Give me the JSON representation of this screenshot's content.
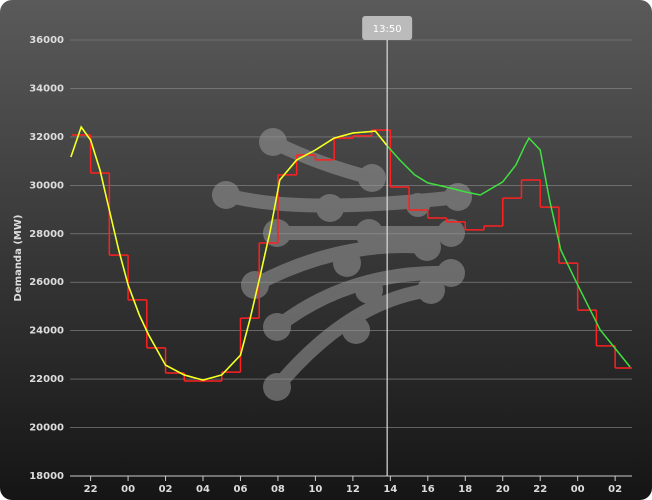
{
  "chart_data": {
    "type": "line",
    "y_label": "Demanda (MW)",
    "xlim": [
      20.9,
      50.9
    ],
    "ylim": [
      18000,
      36000
    ],
    "yticks": [
      18000,
      20000,
      22000,
      24000,
      26000,
      28000,
      30000,
      32000,
      34000,
      36000
    ],
    "xticks": [
      {
        "value": 22,
        "label": "22"
      },
      {
        "value": 24,
        "label": "00"
      },
      {
        "value": 26,
        "label": "02"
      },
      {
        "value": 28,
        "label": "04"
      },
      {
        "value": 30,
        "label": "06"
      },
      {
        "value": 32,
        "label": "08"
      },
      {
        "value": 34,
        "label": "10"
      },
      {
        "value": 36,
        "label": "12"
      },
      {
        "value": 38,
        "label": "14"
      },
      {
        "value": 40,
        "label": "16"
      },
      {
        "value": 42,
        "label": "18"
      },
      {
        "value": 44,
        "label": "20"
      },
      {
        "value": 46,
        "label": "22"
      },
      {
        "value": 48,
        "label": "00"
      },
      {
        "value": 50,
        "label": "02"
      }
    ],
    "grid": true,
    "cursor": {
      "label": "13:50",
      "x": 37.83
    },
    "series": [
      {
        "color": "#ff2020",
        "style": "step",
        "x": [
          21,
          22,
          23,
          24,
          25,
          26,
          27,
          28,
          29,
          30,
          31,
          32,
          33,
          34,
          35,
          36,
          37,
          38,
          39,
          40,
          41,
          42,
          43,
          44,
          45,
          46,
          47,
          48,
          49,
          50
        ],
        "values": [
          32080,
          30510,
          27120,
          25270,
          23290,
          22250,
          21920,
          21920,
          22290,
          24520,
          27620,
          30430,
          31250,
          31050,
          31950,
          32040,
          32280,
          29930,
          28980,
          28650,
          28490,
          28160,
          28320,
          29470,
          30220,
          29100,
          26790,
          24850,
          23370,
          22460
        ]
      },
      {
        "color": "#40e040",
        "style": "line",
        "x": [
          20.95,
          21.5,
          22,
          22.5,
          23,
          23.5,
          24,
          24.6,
          25.1,
          26,
          27,
          28,
          29,
          30,
          30.5,
          31,
          31.6,
          32.1,
          33,
          34,
          35,
          36,
          37.2,
          37.8,
          38.5,
          39.3,
          40,
          41.2,
          42,
          42.8,
          44,
          44.7,
          45.2,
          45.4,
          46,
          46.5,
          47.1,
          48,
          49.2,
          50.8
        ],
        "values": [
          31170,
          32410,
          31870,
          30630,
          28980,
          27330,
          25890,
          24650,
          23820,
          22580,
          22170,
          21960,
          22170,
          22990,
          24440,
          26090,
          28160,
          30220,
          31050,
          31460,
          31950,
          32160,
          32240,
          31660,
          31050,
          30430,
          30100,
          29890,
          29730,
          29600,
          30140,
          30840,
          31660,
          31950,
          31460,
          29390,
          27330,
          25890,
          24030,
          22500
        ]
      },
      {
        "color": "#ffff20",
        "style": "line",
        "x": [
          20.95,
          21.5,
          22,
          22.5,
          23,
          23.5,
          24,
          24.6,
          25.1,
          26,
          27,
          28,
          29,
          30,
          30.5,
          31,
          31.6,
          32.1,
          33,
          34,
          35,
          36,
          37.2,
          37.8
        ],
        "values": [
          31170,
          32410,
          31870,
          30630,
          28980,
          27330,
          25890,
          24650,
          23820,
          22580,
          22170,
          21960,
          22170,
          22990,
          24440,
          26090,
          28160,
          30220,
          31050,
          31460,
          31950,
          32160,
          32240,
          31660
        ]
      }
    ]
  }
}
